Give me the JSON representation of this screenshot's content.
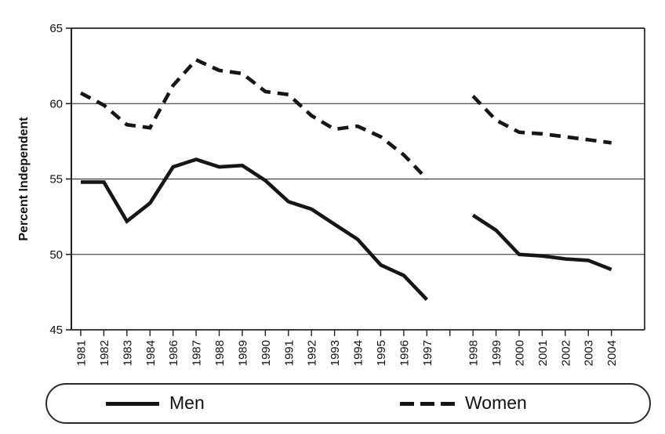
{
  "chart_data": {
    "type": "line",
    "title": "",
    "xlabel": "",
    "ylabel": "Percent Independent",
    "ylim": [
      45,
      65
    ],
    "yticks": [
      45,
      50,
      55,
      60,
      65
    ],
    "grid": "horizontal",
    "legend_position": "bottom",
    "note": "x positions 1985 and the slot between 1997 and 1998 are unlabeled gap years with no data",
    "categories": [
      "1981",
      "1982",
      "1983",
      "1984",
      "1986",
      "1987",
      "1988",
      "1989",
      "1990",
      "1991",
      "1992",
      "1993",
      "1994",
      "1995",
      "1996",
      "1997",
      "",
      "1998",
      "1999",
      "2000",
      "2001",
      "2002",
      "2003",
      "2004"
    ],
    "series": [
      {
        "name": "Men",
        "style": "solid",
        "color": "#161616",
        "values": [
          54.8,
          54.8,
          52.2,
          53.4,
          55.8,
          56.3,
          55.8,
          55.9,
          54.9,
          53.5,
          53.0,
          52.0,
          51.0,
          49.3,
          48.6,
          47.0,
          null,
          52.6,
          51.6,
          50.0,
          49.9,
          49.7,
          49.6,
          49.0
        ]
      },
      {
        "name": "Women",
        "style": "dashed",
        "color": "#161616",
        "values": [
          60.7,
          59.9,
          58.6,
          58.4,
          61.2,
          62.9,
          62.2,
          62.0,
          60.8,
          60.6,
          59.2,
          58.3,
          58.5,
          57.8,
          56.6,
          55.0,
          null,
          60.5,
          58.9,
          58.1,
          58.0,
          57.8,
          57.6,
          57.4
        ]
      }
    ],
    "colors": {
      "line": "#161616",
      "grid": "#222222",
      "text": "#111111"
    }
  }
}
